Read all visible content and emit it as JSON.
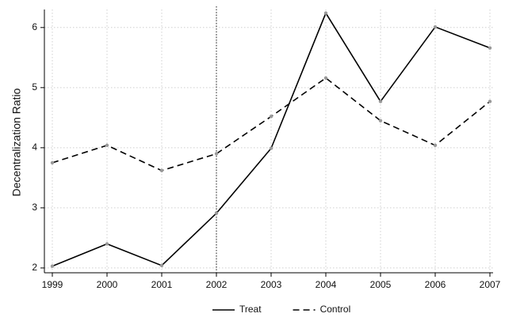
{
  "chart_data": {
    "type": "line",
    "y_label": "Decentralization Ratio",
    "x": [
      1999,
      2000,
      2001,
      2002,
      2003,
      2004,
      2005,
      2006,
      2007
    ],
    "series": [
      {
        "name": "Treat",
        "color": "#000000",
        "style": "solid",
        "values": [
          2.03,
          2.4,
          2.04,
          2.91,
          3.99,
          6.24,
          4.77,
          6.01,
          5.66
        ]
      },
      {
        "name": "Control",
        "color": "#000000",
        "style": "dashed",
        "values": [
          3.75,
          4.04,
          3.62,
          3.9,
          4.52,
          5.16,
          4.45,
          4.04,
          4.77
        ]
      }
    ],
    "xlim": [
      1999,
      2007
    ],
    "xticks": [
      1999,
      2000,
      2001,
      2002,
      2003,
      2004,
      2005,
      2006,
      2007
    ],
    "ylim": [
      1.92,
      6.3
    ],
    "yticks": [
      2,
      3,
      4,
      5,
      6
    ],
    "grid": true,
    "reference_line_x": 2002,
    "legend": "bottom"
  }
}
